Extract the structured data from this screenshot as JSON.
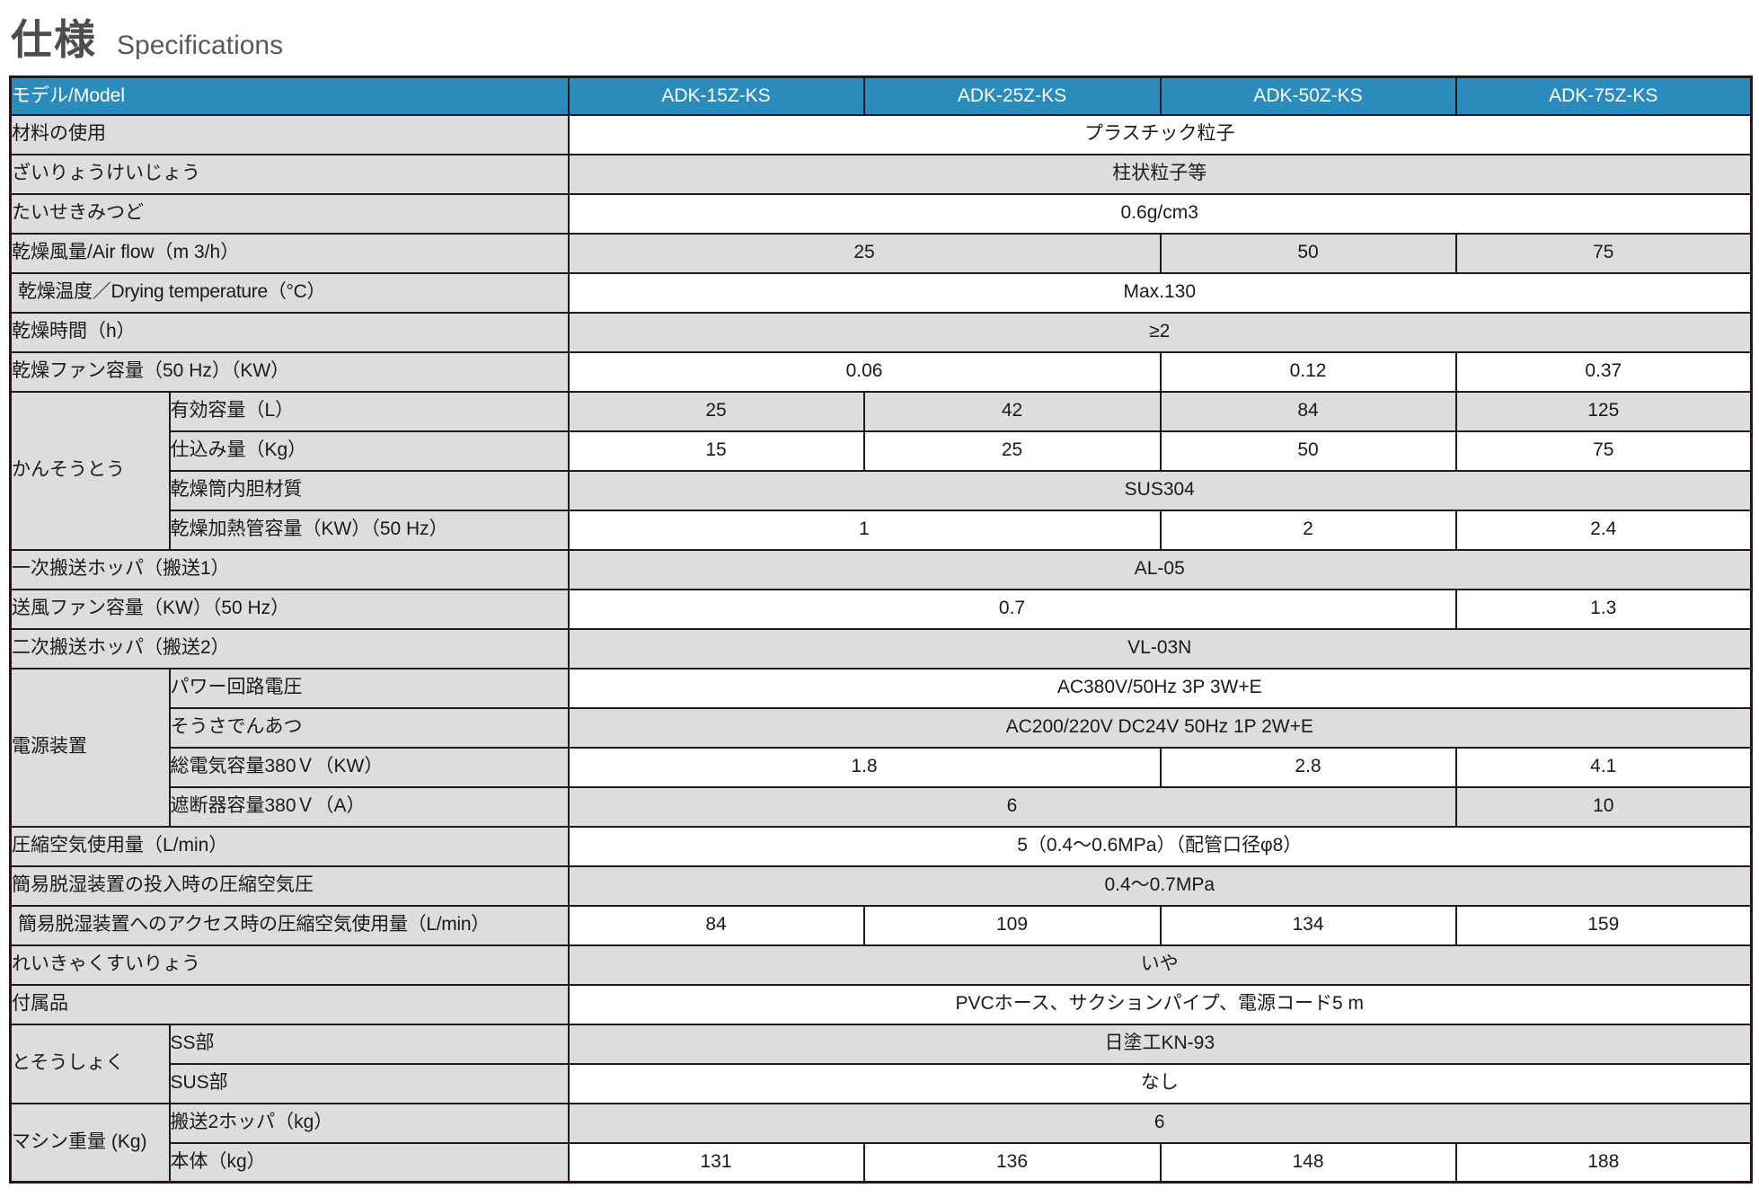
{
  "title": {
    "jp": "仕様",
    "en": "Specifications"
  },
  "colors": {
    "header_bg": "#2a8cbc",
    "zebra_bg": "#dcdddd",
    "border": "#231815",
    "header_text": "#ffffff",
    "body_text": "#1a1a1a",
    "title_jp": "#4d4d4d",
    "title_en": "#595959"
  },
  "table": {
    "corner_label": "モデル/Model",
    "models": [
      "ADK-15Z-KS",
      "ADK-25Z-KS",
      "ADK-50Z-KS",
      "ADK-75Z-KS"
    ],
    "rows": [
      {
        "label": "材料の使用",
        "cells": [
          {
            "text": "プラスチック粒子",
            "span": 4
          }
        ]
      },
      {
        "label": "ざいりょうけいじょう",
        "cells": [
          {
            "text": "柱状粒子等",
            "span": 4
          }
        ]
      },
      {
        "label": "たいせきみつど",
        "cells": [
          {
            "text": "0.6g/cm3",
            "span": 4
          }
        ]
      },
      {
        "label": "乾燥風量/Air flow（m 3/h）",
        "cells": [
          {
            "text": "25",
            "span": 2
          },
          {
            "text": "50",
            "span": 1
          },
          {
            "text": "75",
            "span": 1
          }
        ]
      },
      {
        "label": "乾燥温度／Drying temperature（°C）",
        "cells": [
          {
            "text": "Max.130",
            "span": 4
          }
        ]
      },
      {
        "label": "乾燥時間（h）",
        "cells": [
          {
            "text": "≥2",
            "span": 4
          }
        ]
      },
      {
        "label": "乾燥ファン容量（50 Hz）（KW）",
        "cells": [
          {
            "text": "0.06",
            "span": 2
          },
          {
            "text": "0.12",
            "span": 1
          },
          {
            "text": "0.37",
            "span": 1
          }
        ]
      },
      {
        "group": {
          "label": "かんそうとう",
          "rowspan": 4
        },
        "sub": true,
        "label": "有効容量（L）",
        "cells": [
          {
            "text": "25",
            "span": 1
          },
          {
            "text": "42",
            "span": 1
          },
          {
            "text": "84",
            "span": 1
          },
          {
            "text": "125",
            "span": 1
          }
        ]
      },
      {
        "sub": true,
        "label": "仕込み量（Kg）",
        "cells": [
          {
            "text": "15",
            "span": 1
          },
          {
            "text": "25",
            "span": 1
          },
          {
            "text": "50",
            "span": 1
          },
          {
            "text": "75",
            "span": 1
          }
        ]
      },
      {
        "sub": true,
        "label": "乾燥筒内胆材質",
        "cells": [
          {
            "text": "SUS304",
            "span": 4
          }
        ]
      },
      {
        "sub": true,
        "label": "乾燥加熱管容量（KW）（50 Hz）",
        "cells": [
          {
            "text": "1",
            "span": 2
          },
          {
            "text": "2",
            "span": 1
          },
          {
            "text": "2.4",
            "span": 1
          }
        ]
      },
      {
        "label": "一次搬送ホッパ（搬送1）",
        "cells": [
          {
            "text": "AL-05",
            "span": 4
          }
        ]
      },
      {
        "label": "送風ファン容量（KW）（50 Hz）",
        "cells": [
          {
            "text": "0.7",
            "span": 3
          },
          {
            "text": "1.3",
            "span": 1
          }
        ]
      },
      {
        "label": "二次搬送ホッパ（搬送2）",
        "cells": [
          {
            "text": "VL-03N",
            "span": 4
          }
        ]
      },
      {
        "group": {
          "label": "電源装置",
          "rowspan": 4
        },
        "sub": true,
        "label": "パワー回路電圧",
        "cells": [
          {
            "text": "AC380V/50Hz 3P 3W+E",
            "span": 4
          }
        ]
      },
      {
        "sub": true,
        "label": "そうさでんあつ",
        "cells": [
          {
            "text": "AC200/220V DC24V 50Hz 1P 2W+E",
            "span": 4
          }
        ]
      },
      {
        "sub": true,
        "label": "総電気容量380Ｖ（KW）",
        "cells": [
          {
            "text": "1.8",
            "span": 2
          },
          {
            "text": "2.8",
            "span": 1
          },
          {
            "text": "4.1",
            "span": 1
          }
        ]
      },
      {
        "sub": true,
        "label": "遮断器容量380Ｖ（A）",
        "cells": [
          {
            "text": "6",
            "span": 3
          },
          {
            "text": "10",
            "span": 1
          }
        ]
      },
      {
        "label": "圧縮空気使用量（L/min）",
        "cells": [
          {
            "text": "5（0.4～0.6MPa）（配管口径φ8）",
            "span": 4
          }
        ]
      },
      {
        "label": "簡易脱湿装置の投入時の圧縮空気圧",
        "cells": [
          {
            "text": "0.4～0.7MPa",
            "span": 4
          }
        ]
      },
      {
        "label": "簡易脱湿装置へのアクセス時の圧縮空気使用量（L/min）",
        "cells": [
          {
            "text": "84",
            "span": 1
          },
          {
            "text": "109",
            "span": 1
          },
          {
            "text": "134",
            "span": 1
          },
          {
            "text": "159",
            "span": 1
          }
        ]
      },
      {
        "label": "れいきゃくすいりょう",
        "cells": [
          {
            "text": "いや",
            "span": 4
          }
        ]
      },
      {
        "label": "付属品",
        "cells": [
          {
            "text": "PVCホース、サクションパイプ、電源コード5 m",
            "span": 4
          }
        ]
      },
      {
        "group": {
          "label": "とそうしょく",
          "rowspan": 2
        },
        "sub": true,
        "label": "SS部",
        "cells": [
          {
            "text": "日塗工KN-93",
            "span": 4
          }
        ]
      },
      {
        "sub": true,
        "label": "SUS部",
        "cells": [
          {
            "text": "なし",
            "span": 4
          }
        ]
      },
      {
        "group": {
          "label": "マシン重量\n(Kg)",
          "rowspan": 2
        },
        "sub": true,
        "label": "搬送2ホッパ（kg）",
        "cells": [
          {
            "text": "6",
            "span": 4
          }
        ]
      },
      {
        "sub": true,
        "label": "本体（kg）",
        "cells": [
          {
            "text": "131",
            "span": 1
          },
          {
            "text": "136",
            "span": 1
          },
          {
            "text": "148",
            "span": 1
          },
          {
            "text": "188",
            "span": 1
          }
        ]
      }
    ]
  }
}
